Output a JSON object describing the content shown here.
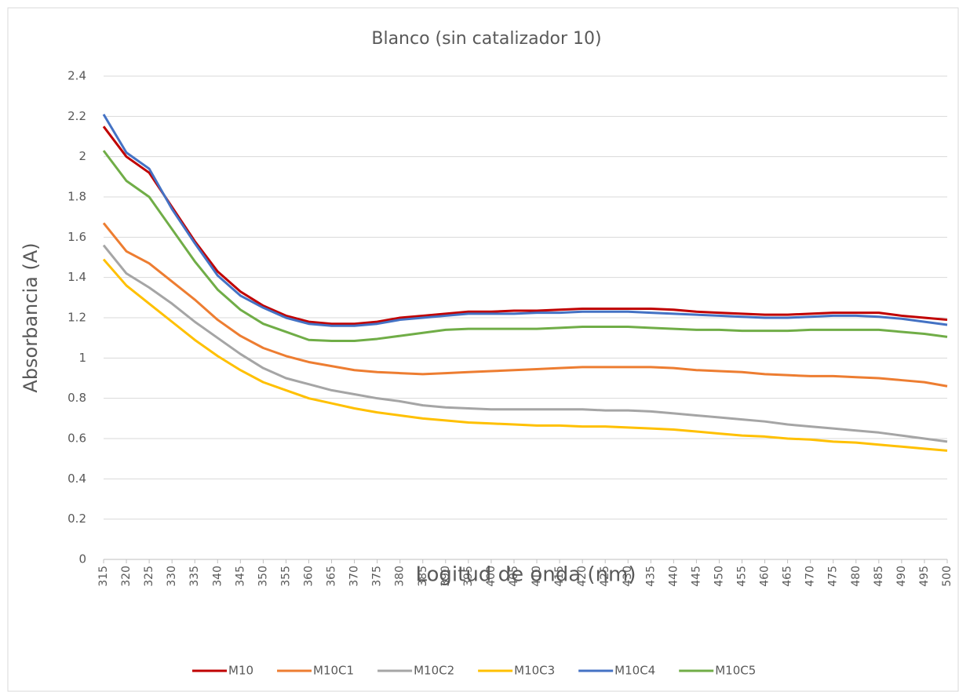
{
  "chart_data": {
    "type": "line",
    "title": "Blanco (sin catalizador 10)",
    "x_label": "Logitud de onda (nm)",
    "y_label": "Absorbancia (A)",
    "x": [
      315,
      320,
      325,
      330,
      335,
      340,
      345,
      350,
      355,
      360,
      365,
      370,
      375,
      380,
      385,
      390,
      395,
      400,
      405,
      410,
      415,
      420,
      425,
      430,
      435,
      440,
      445,
      450,
      455,
      460,
      465,
      470,
      475,
      480,
      485,
      490,
      495,
      500
    ],
    "xlim": [
      315,
      500
    ],
    "xticks": [
      315,
      320,
      325,
      330,
      335,
      340,
      345,
      350,
      355,
      360,
      365,
      370,
      375,
      380,
      385,
      390,
      395,
      400,
      405,
      410,
      415,
      420,
      425,
      430,
      435,
      440,
      445,
      450,
      455,
      460,
      465,
      470,
      475,
      480,
      485,
      490,
      495,
      500
    ],
    "ylim": [
      0,
      2.4
    ],
    "yticks": [
      0,
      0.2,
      0.4,
      0.6,
      0.8,
      1,
      1.2,
      1.4,
      1.6,
      1.8,
      2,
      2.2,
      2.4
    ],
    "grid": true,
    "legend": "bottom",
    "series": [
      {
        "name": "M10",
        "color": "#c00000",
        "values": [
          2.15,
          2.0,
          1.92,
          1.75,
          1.58,
          1.43,
          1.33,
          1.26,
          1.21,
          1.18,
          1.17,
          1.17,
          1.18,
          1.2,
          1.21,
          1.22,
          1.23,
          1.23,
          1.235,
          1.235,
          1.24,
          1.245,
          1.245,
          1.245,
          1.245,
          1.24,
          1.23,
          1.225,
          1.22,
          1.215,
          1.215,
          1.22,
          1.225,
          1.225,
          1.225,
          1.21,
          1.2,
          1.19
        ]
      },
      {
        "name": "M10C1",
        "color": "#ed7d31",
        "values": [
          1.67,
          1.53,
          1.47,
          1.38,
          1.29,
          1.19,
          1.11,
          1.05,
          1.01,
          0.98,
          0.96,
          0.94,
          0.93,
          0.925,
          0.92,
          0.925,
          0.93,
          0.935,
          0.94,
          0.945,
          0.95,
          0.955,
          0.955,
          0.955,
          0.955,
          0.95,
          0.94,
          0.935,
          0.93,
          0.92,
          0.915,
          0.91,
          0.91,
          0.905,
          0.9,
          0.89,
          0.88,
          0.86
        ]
      },
      {
        "name": "M10C2",
        "color": "#a5a5a5",
        "values": [
          1.56,
          1.42,
          1.35,
          1.27,
          1.18,
          1.1,
          1.02,
          0.95,
          0.9,
          0.87,
          0.84,
          0.82,
          0.8,
          0.785,
          0.765,
          0.755,
          0.75,
          0.745,
          0.745,
          0.745,
          0.745,
          0.745,
          0.74,
          0.74,
          0.735,
          0.725,
          0.715,
          0.705,
          0.695,
          0.685,
          0.67,
          0.66,
          0.65,
          0.64,
          0.63,
          0.615,
          0.6,
          0.585
        ]
      },
      {
        "name": "M10C3",
        "color": "#ffc000",
        "values": [
          1.49,
          1.36,
          1.27,
          1.18,
          1.09,
          1.01,
          0.94,
          0.88,
          0.84,
          0.8,
          0.775,
          0.75,
          0.73,
          0.715,
          0.7,
          0.69,
          0.68,
          0.675,
          0.67,
          0.665,
          0.665,
          0.66,
          0.66,
          0.655,
          0.65,
          0.645,
          0.635,
          0.625,
          0.615,
          0.61,
          0.6,
          0.595,
          0.585,
          0.58,
          0.57,
          0.56,
          0.55,
          0.54
        ]
      },
      {
        "name": "M10C4",
        "color": "#4472c4",
        "values": [
          2.21,
          2.02,
          1.94,
          1.74,
          1.57,
          1.41,
          1.31,
          1.25,
          1.2,
          1.17,
          1.16,
          1.16,
          1.17,
          1.19,
          1.2,
          1.21,
          1.22,
          1.22,
          1.22,
          1.225,
          1.225,
          1.23,
          1.23,
          1.23,
          1.225,
          1.22,
          1.215,
          1.21,
          1.205,
          1.2,
          1.2,
          1.205,
          1.21,
          1.21,
          1.205,
          1.195,
          1.18,
          1.165
        ]
      },
      {
        "name": "M10C5",
        "color": "#70ad47",
        "values": [
          2.03,
          1.88,
          1.8,
          1.64,
          1.48,
          1.34,
          1.24,
          1.17,
          1.13,
          1.09,
          1.085,
          1.085,
          1.095,
          1.11,
          1.125,
          1.14,
          1.145,
          1.145,
          1.145,
          1.145,
          1.15,
          1.155,
          1.155,
          1.155,
          1.15,
          1.145,
          1.14,
          1.14,
          1.135,
          1.135,
          1.135,
          1.14,
          1.14,
          1.14,
          1.14,
          1.13,
          1.12,
          1.105
        ]
      }
    ]
  }
}
